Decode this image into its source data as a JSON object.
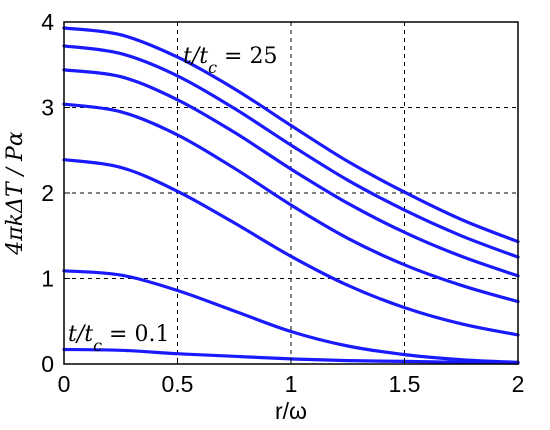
{
  "chart_data": {
    "type": "line",
    "title": "",
    "xlabel": "r/ω",
    "ylabel": "4πkΔT / Pα",
    "xlim": [
      0,
      2
    ],
    "ylim": [
      0,
      4
    ],
    "xticks": [
      "0",
      "0.5",
      "1",
      "1.5",
      "2"
    ],
    "yticks": [
      "0",
      "1",
      "2",
      "3",
      "4"
    ],
    "grid": true,
    "line_color": "#1a1aff",
    "annotations": [
      {
        "text": "t/t_c = 25",
        "display": "t/tc = 25"
      },
      {
        "text": "t/t_c = 0.1",
        "display": "t/tc = 0.1"
      }
    ],
    "x": [
      0,
      0.25,
      0.5,
      0.75,
      1.0,
      1.25,
      1.5,
      1.75,
      2.0
    ],
    "series": [
      {
        "values": [
          0.17,
          0.16,
          0.12,
          0.09,
          0.06,
          0.04,
          0.03,
          0.02,
          0.01
        ]
      },
      {
        "values": [
          1.09,
          1.04,
          0.86,
          0.62,
          0.38,
          0.21,
          0.11,
          0.05,
          0.02
        ]
      },
      {
        "values": [
          2.39,
          2.3,
          2.02,
          1.65,
          1.26,
          0.92,
          0.66,
          0.47,
          0.34
        ]
      },
      {
        "values": [
          3.04,
          2.95,
          2.68,
          2.29,
          1.86,
          1.47,
          1.16,
          0.92,
          0.73
        ]
      },
      {
        "values": [
          3.44,
          3.36,
          3.09,
          2.71,
          2.28,
          1.88,
          1.54,
          1.26,
          1.03
        ]
      },
      {
        "values": [
          3.72,
          3.63,
          3.37,
          2.99,
          2.56,
          2.15,
          1.8,
          1.5,
          1.25
        ]
      },
      {
        "values": [
          3.93,
          3.85,
          3.59,
          3.22,
          2.79,
          2.37,
          2.01,
          1.69,
          1.43
        ]
      }
    ]
  }
}
